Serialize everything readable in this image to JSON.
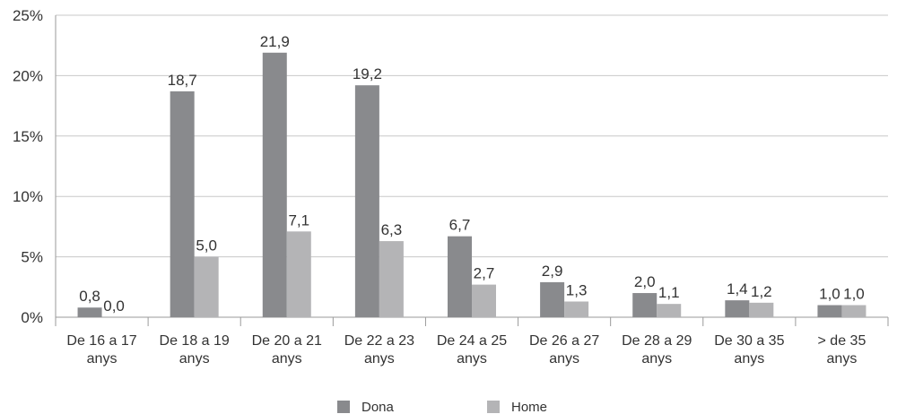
{
  "chart_data": {
    "type": "bar",
    "title": "",
    "xlabel": "",
    "ylabel": "",
    "ylim": [
      0,
      25
    ],
    "yticks": [
      0,
      5,
      10,
      15,
      20,
      25
    ],
    "ytick_labels": [
      "0%",
      "5%",
      "10%",
      "15%",
      "20%",
      "25%"
    ],
    "grid": true,
    "legend_position": "bottom",
    "categories": [
      [
        "De 16 a 17",
        "anys"
      ],
      [
        "De 18 a 19",
        "anys"
      ],
      [
        "De 20 a 21",
        "anys"
      ],
      [
        "De 22 a 23",
        "anys"
      ],
      [
        "De 24 a 25",
        "anys"
      ],
      [
        "De 26 a 27",
        "anys"
      ],
      [
        "De 28 a 29",
        "anys"
      ],
      [
        "De 30 a 35",
        "anys"
      ],
      [
        "> de 35",
        "anys"
      ]
    ],
    "series": [
      {
        "name": "Dona",
        "color": "#898a8d",
        "values": [
          0.8,
          18.7,
          21.9,
          19.2,
          6.7,
          2.9,
          2.0,
          1.4,
          1.0
        ],
        "labels": [
          "0,8",
          "18,7",
          "21,9",
          "19,2",
          "6,7",
          "2,9",
          "2,0",
          "1,4",
          "1,0"
        ]
      },
      {
        "name": "Home",
        "color": "#b4b4b6",
        "values": [
          0.0,
          5.0,
          7.1,
          6.3,
          2.7,
          1.3,
          1.1,
          1.2,
          1.0
        ],
        "labels": [
          "0,0",
          "5,0",
          "7,1",
          "6,3",
          "2,7",
          "1,3",
          "1,1",
          "1,2",
          "1,0"
        ]
      }
    ],
    "gridline_color": "#c8c8c8",
    "axis_color": "#9a9a9a"
  }
}
